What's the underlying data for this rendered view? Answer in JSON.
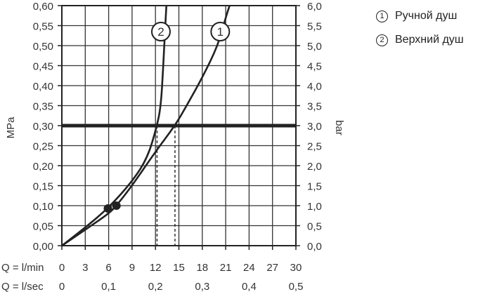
{
  "chart_data": {
    "type": "line",
    "ylabel_left": "MPa",
    "ylabel_right": "bar",
    "ylim": [
      0,
      0.6
    ],
    "y_ticks_left": [
      "0,00",
      "0,05",
      "0,10",
      "0,15",
      "0,20",
      "0,25",
      "0,30",
      "0,35",
      "0,40",
      "0,45",
      "0,50",
      "0,55",
      "0,60"
    ],
    "y_ticks_right": [
      "0,0",
      "0,5",
      "1,0",
      "1,5",
      "2,0",
      "2,5",
      "3,0",
      "3,5",
      "4,0",
      "4,5",
      "5,0",
      "5,5",
      "6,0"
    ],
    "x_row1_label": "Q = l/min",
    "x_row1_ticks": [
      "0",
      "3",
      "6",
      "9",
      "12",
      "15",
      "18",
      "21",
      "24",
      "27",
      "30"
    ],
    "x_row2_label": "Q = l/sec",
    "x_row2_ticks": [
      "0",
      "0,1",
      "0,2",
      "0,3",
      "0,4",
      "0,5"
    ],
    "xlim": [
      0,
      30
    ],
    "grid": true,
    "reference_line": {
      "y": 0.3
    },
    "series": [
      {
        "name": "Ручной душ",
        "marker": "1",
        "x": [
          0,
          3,
          6,
          7,
          9,
          12,
          14.5,
          16,
          18,
          20,
          21,
          21.5
        ],
        "y": [
          0,
          0.04,
          0.08,
          0.1,
          0.15,
          0.235,
          0.3,
          0.35,
          0.42,
          0.5,
          0.57,
          0.6
        ]
      },
      {
        "name": "Верхний душ",
        "marker": "2",
        "x": [
          0,
          3,
          6,
          9,
          11,
          12.2,
          12.7,
          13,
          13.2,
          13.4
        ],
        "y": [
          0,
          0.045,
          0.095,
          0.16,
          0.22,
          0.3,
          0.35,
          0.45,
          0.53,
          0.6
        ]
      }
    ],
    "points": [
      {
        "x": 5.9,
        "y": 0.093
      },
      {
        "x": 7,
        "y": 0.1
      }
    ],
    "dashed_drop_x": [
      12.2,
      14.5
    ]
  },
  "legend": {
    "items": [
      {
        "marker": "1",
        "label": "Ручной душ"
      },
      {
        "marker": "2",
        "label": "Верхний душ"
      }
    ]
  }
}
